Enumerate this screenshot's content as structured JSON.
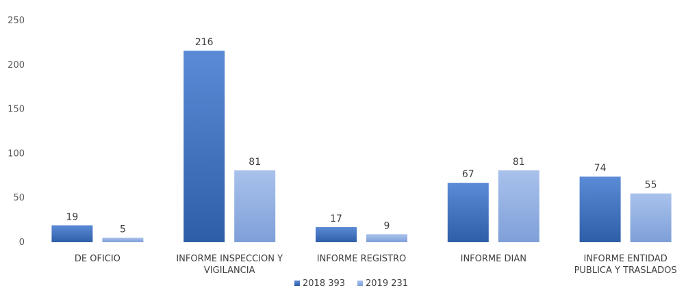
{
  "chart_data": {
    "type": "bar",
    "categories": [
      [
        "DE OFICIO"
      ],
      [
        "INFORME  INSPECCION Y",
        "VIGILANCIA"
      ],
      [
        "INFORME REGISTRO"
      ],
      [
        "INFORME DIAN"
      ],
      [
        "INFORME ENTIDAD",
        "PUBLICA Y TRASLADOS"
      ]
    ],
    "series": [
      {
        "name": "2018 393",
        "values": [
          19,
          216,
          17,
          67,
          74
        ],
        "color_top": "#5b8bd6",
        "color_bottom": "#2f5ea8"
      },
      {
        "name": "2019 231",
        "values": [
          5,
          81,
          9,
          81,
          55
        ],
        "color_top": "#a9c2ec",
        "color_bottom": "#7e9fd8"
      }
    ],
    "yticks": [
      0,
      50,
      100,
      150,
      200,
      250
    ],
    "ylim": [
      0,
      250
    ],
    "grid": false,
    "legend_position": "bottom-center"
  }
}
